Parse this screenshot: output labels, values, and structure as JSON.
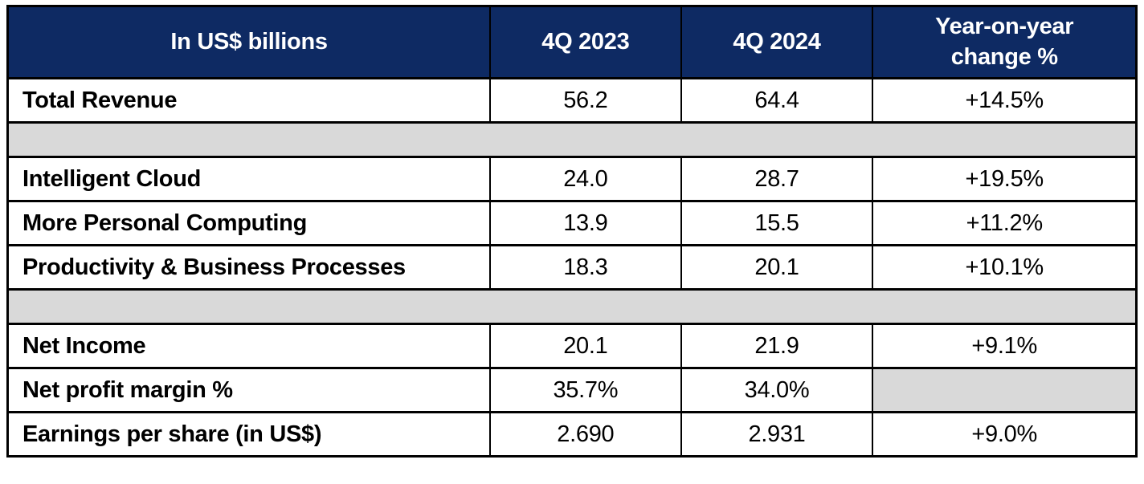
{
  "colors": {
    "header_bg": "#0e2a63",
    "header_text": "#ffffff",
    "spacer_bg": "#d9d9d9",
    "border_color": "#000000",
    "text_color": "#000000"
  },
  "chart_data": {
    "type": "table",
    "title": "",
    "columns": [
      "In US$ billions",
      "4Q 2023",
      "4Q 2024",
      "Year-on-year\nchange %"
    ],
    "rows": [
      {
        "cells": [
          "Total Revenue",
          "56.2",
          "64.4",
          "+14.5%"
        ]
      },
      {
        "cells": [
          "Intelligent Cloud",
          "24.0",
          "28.7",
          "+19.5%"
        ]
      },
      {
        "cells": [
          "More Personal Computing",
          "13.9",
          "15.5",
          "+11.2%"
        ]
      },
      {
        "cells": [
          "Productivity & Business Processes",
          "18.3",
          "20.1",
          "+10.1%"
        ]
      },
      {
        "cells": [
          "Net Income",
          "20.1",
          "21.9",
          "+9.1%"
        ]
      },
      {
        "cells": [
          "Net profit margin %",
          "35.7%",
          "34.0%",
          ""
        ]
      },
      {
        "cells": [
          "Earnings per share (in US$)",
          "2.690",
          "2.931",
          "+9.0%"
        ]
      }
    ],
    "layout": {
      "spacer_rows_after": [
        "Total Revenue",
        "Productivity & Business Processes"
      ],
      "empty_gray_cell": "Net profit margin % / Year-on-year change %"
    }
  }
}
